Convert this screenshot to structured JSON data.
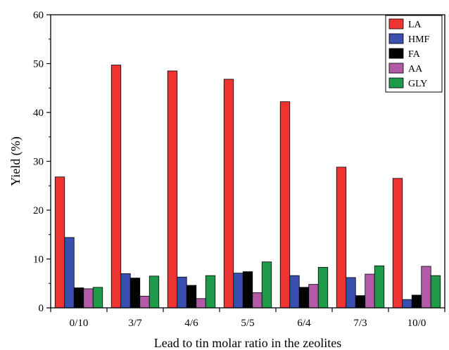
{
  "chart_data": {
    "type": "bar",
    "title": "",
    "xlabel": "Lead to tin molar ratio  in the  zeolites",
    "ylabel": "Yield (%)",
    "ylim": [
      0,
      60
    ],
    "yticks": [
      "0",
      "10",
      "20",
      "30",
      "40",
      "50",
      "60"
    ],
    "categories": [
      "0/10",
      "3/7",
      "4/6",
      "5/5",
      "6/4",
      "7/3",
      "10/0"
    ],
    "legend_position": "top-right",
    "grid": false,
    "series": [
      {
        "name": "LA",
        "color": "#ee3333",
        "values": [
          26.8,
          49.7,
          48.5,
          46.8,
          42.2,
          28.8,
          26.5
        ]
      },
      {
        "name": "HMF",
        "color": "#3b4fae",
        "values": [
          14.4,
          7.0,
          6.3,
          7.1,
          6.6,
          6.2,
          1.7
        ]
      },
      {
        "name": "FA",
        "color": "#000000",
        "values": [
          4.1,
          6.1,
          4.6,
          7.4,
          4.2,
          2.5,
          2.6
        ]
      },
      {
        "name": "AA",
        "color": "#b05aa8",
        "values": [
          3.9,
          2.4,
          1.9,
          3.1,
          4.8,
          6.9,
          8.5
        ]
      },
      {
        "name": "GLY",
        "color": "#1f9a4a",
        "values": [
          4.2,
          6.5,
          6.6,
          9.4,
          8.3,
          8.6,
          6.6
        ]
      }
    ]
  }
}
